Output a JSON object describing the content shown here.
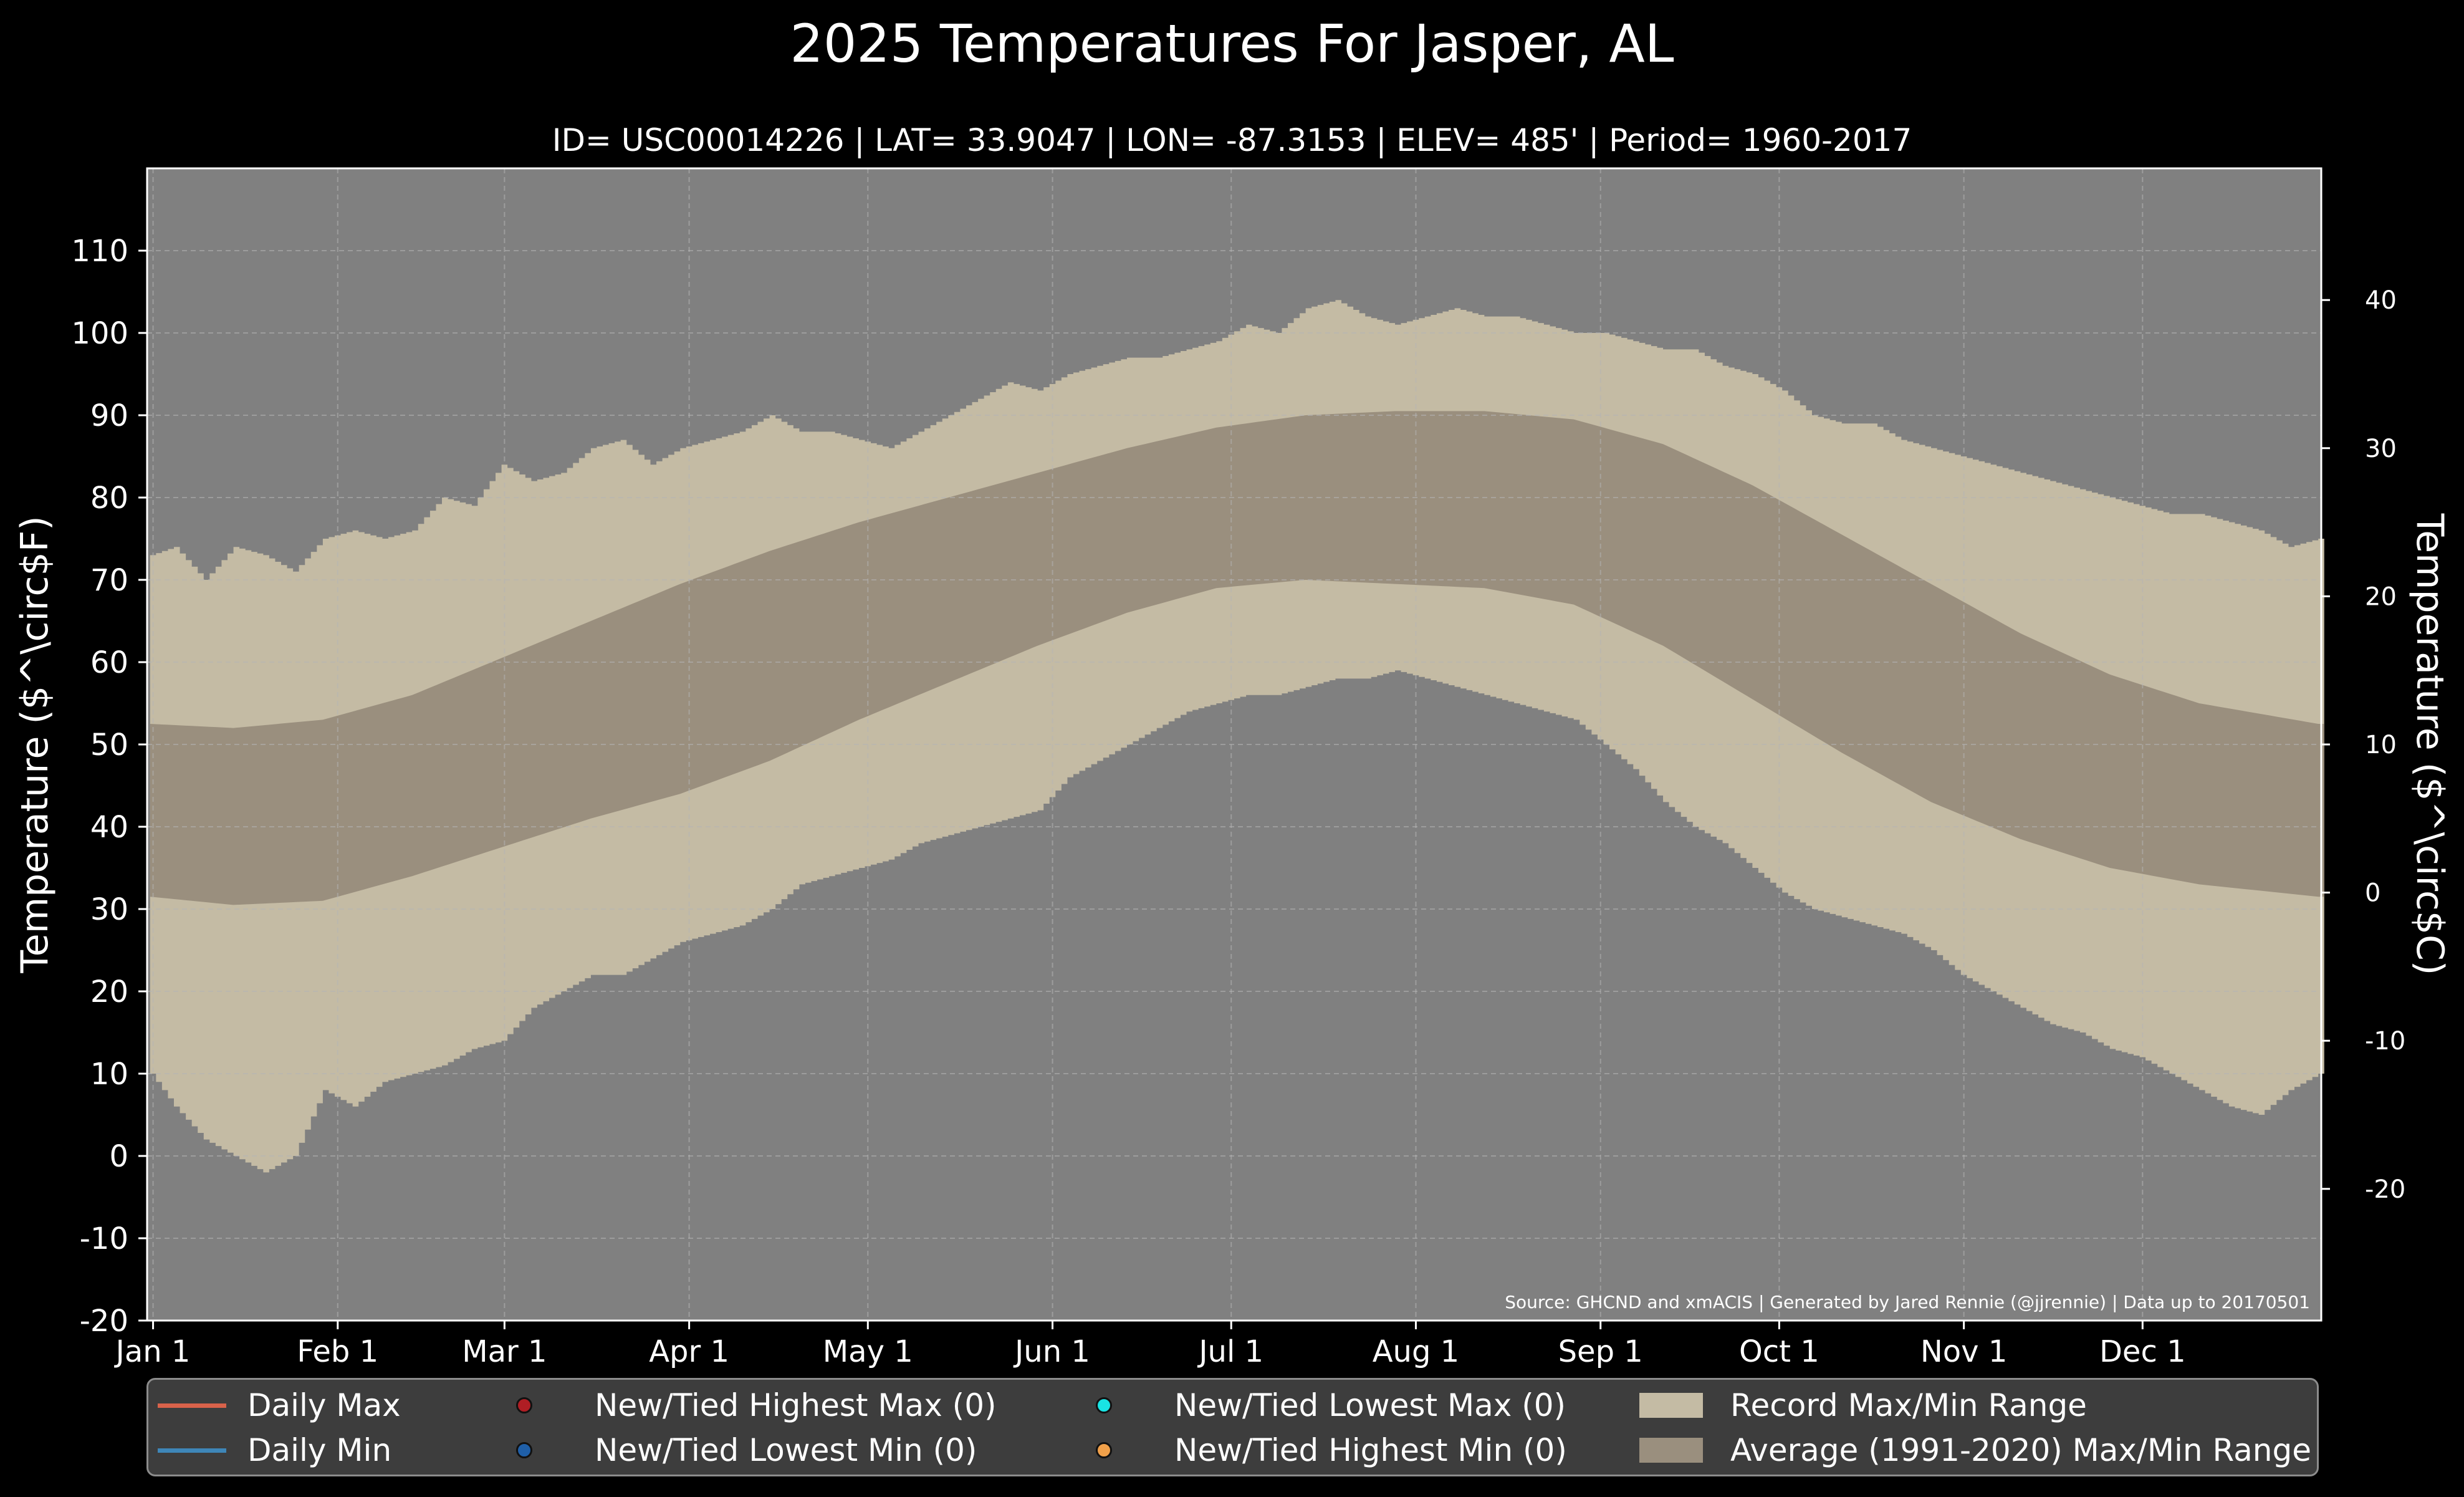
{
  "title": "2025 Temperatures For Jasper, AL",
  "subtitle": "ID= USC00014226 | LAT= 33.9047 | LON= -87.3153 | ELEV= 485' | Period= 1960-2017",
  "source": "Source: GHCND and xmACIS | Generated by Jared Rennie (@jjrennie) | Data up to 20170501",
  "colors": {
    "background": "#000000",
    "plot_bg": "#808080",
    "record_range": "#c4bba4",
    "average_range": "#9a8f7e",
    "daily_max": "#d9624a",
    "daily_min": "#3e86b8",
    "new_highest_max": "#b01e24",
    "new_lowest_min": "#1f5fa8",
    "new_lowest_max": "#19e3e3",
    "new_highest_min": "#f0a04a"
  },
  "legend": {
    "daily_max": "Daily Max",
    "daily_min": "Daily Min",
    "new_highest_max": "New/Tied Highest Max (0)",
    "new_lowest_min": "New/Tied Lowest Min (0)",
    "new_lowest_max": "New/Tied Lowest Max (0)",
    "new_highest_min": "New/Tied Highest Min (0)",
    "record_range": "Record Max/Min Range",
    "average_range": "Average (1991-2020) Max/Min Range"
  },
  "chart_data": {
    "type": "area",
    "title": "2025 Temperatures For Jasper, AL",
    "ylabel": "Temperature ($^\\circ$F)",
    "ylabel_right": "Temperature ($^\\circ$C)",
    "ylim": [
      -20,
      120
    ],
    "xlim": [
      0,
      365
    ],
    "grid": true,
    "legend_position": "below",
    "x_tick_labels": [
      "Jan 1",
      "Feb 1",
      "Mar 1",
      "Apr 1",
      "May 1",
      "Jun 1",
      "Jul 1",
      "Aug 1",
      "Sep 1",
      "Oct 1",
      "Nov 1",
      "Dec 1"
    ],
    "x_tick_days": [
      1,
      32,
      60,
      91,
      121,
      152,
      182,
      213,
      244,
      274,
      305,
      335
    ],
    "y_ticks_f": [
      -20,
      -10,
      0,
      10,
      20,
      30,
      40,
      50,
      60,
      70,
      80,
      90,
      100,
      110
    ],
    "y_ticks_c": [
      -20,
      -10,
      0,
      10,
      20,
      30,
      40
    ],
    "series": [
      {
        "name": "Record Max/Min Range",
        "x": [
          1,
          5,
          10,
          15,
          20,
          25,
          30,
          35,
          40,
          45,
          50,
          55,
          60,
          65,
          70,
          75,
          80,
          85,
          90,
          95,
          100,
          105,
          110,
          115,
          120,
          125,
          130,
          135,
          140,
          145,
          150,
          155,
          160,
          165,
          170,
          175,
          180,
          185,
          190,
          195,
          200,
          205,
          210,
          215,
          220,
          225,
          230,
          235,
          240,
          245,
          250,
          255,
          260,
          265,
          270,
          275,
          280,
          285,
          290,
          295,
          300,
          305,
          310,
          315,
          320,
          325,
          330,
          335,
          340,
          345,
          350,
          355,
          360,
          365
        ],
        "max": [
          73,
          74,
          70,
          74,
          73,
          71,
          75,
          76,
          75,
          76,
          80,
          79,
          84,
          82,
          83,
          86,
          87,
          84,
          86,
          87,
          88,
          90,
          88,
          88,
          87,
          86,
          88,
          90,
          92,
          94,
          93,
          95,
          96,
          97,
          97,
          98,
          99,
          101,
          100,
          103,
          104,
          102,
          101,
          102,
          103,
          102,
          102,
          101,
          100,
          100,
          99,
          98,
          98,
          96,
          95,
          93,
          90,
          89,
          89,
          87,
          86,
          85,
          84,
          83,
          82,
          81,
          80,
          79,
          78,
          78,
          77,
          76,
          74,
          75
        ],
        "min": [
          10,
          6,
          2,
          0,
          -2,
          0,
          8,
          6,
          9,
          10,
          11,
          13,
          14,
          18,
          20,
          22,
          22,
          24,
          26,
          27,
          28,
          30,
          33,
          34,
          35,
          36,
          38,
          39,
          40,
          41,
          42,
          46,
          48,
          50,
          52,
          54,
          55,
          56,
          56,
          57,
          58,
          58,
          59,
          58,
          57,
          56,
          55,
          54,
          53,
          50,
          47,
          43,
          40,
          38,
          35,
          32,
          30,
          29,
          28,
          27,
          25,
          22,
          20,
          18,
          16,
          15,
          13,
          12,
          10,
          8,
          6,
          5,
          8,
          10
        ]
      },
      {
        "name": "Average (1991-2020) Max/Min Range",
        "x": [
          1,
          15,
          30,
          45,
          60,
          75,
          90,
          105,
          120,
          135,
          150,
          165,
          180,
          195,
          210,
          225,
          240,
          255,
          270,
          285,
          300,
          315,
          330,
          345,
          365
        ],
        "max": [
          52.5,
          52,
          53,
          56,
          60.5,
          65,
          69.5,
          73.5,
          77,
          80,
          83,
          86,
          88.5,
          90,
          90.5,
          90.5,
          89.5,
          86.5,
          81.5,
          75.5,
          69.5,
          63.5,
          58.5,
          55,
          52.5
        ],
        "min": [
          31.5,
          30.5,
          31,
          34,
          37.5,
          41,
          44,
          48,
          53,
          57.5,
          62,
          66,
          69,
          70,
          69.5,
          69,
          67,
          62,
          55.5,
          49,
          43,
          38.5,
          35,
          33,
          31.5
        ]
      }
    ],
    "annotations": [
      "Source: GHCND and xmACIS | Generated by Jared Rennie (@jjrennie) | Data up to 20170501"
    ]
  }
}
